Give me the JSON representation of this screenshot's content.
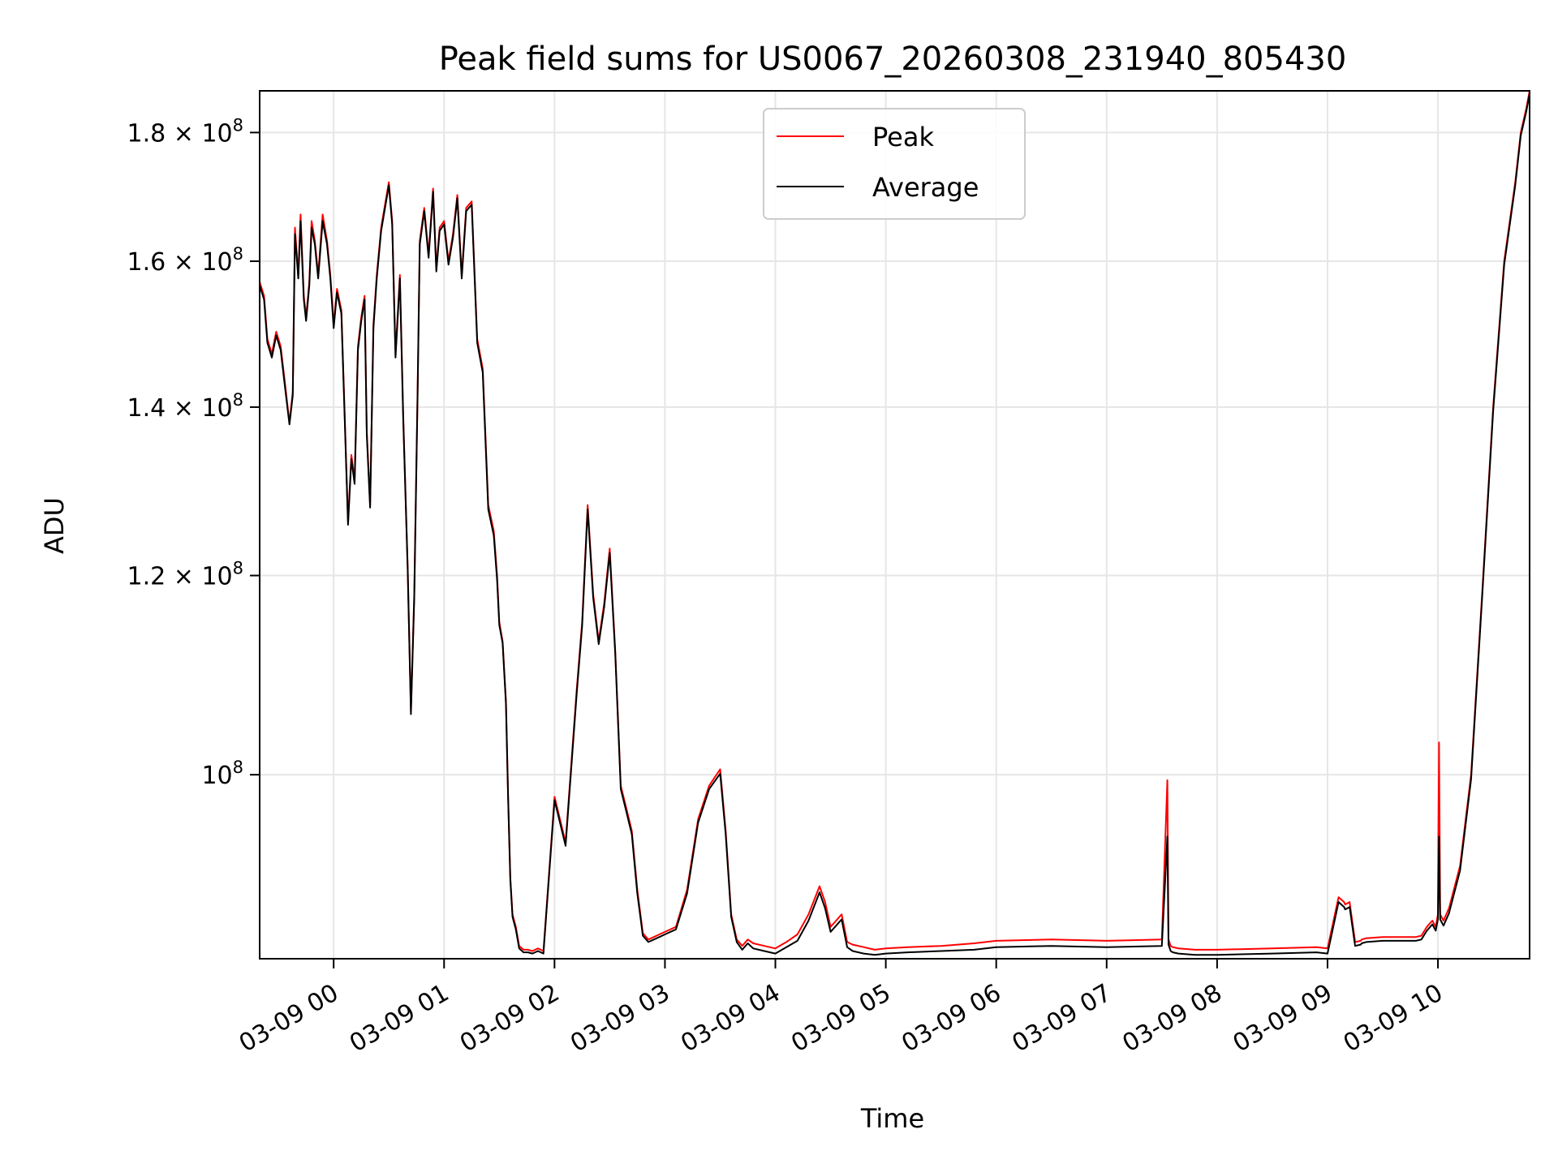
{
  "chart_data": {
    "type": "line",
    "title": "Peak field sums for US0067_20260308_231940_805430",
    "xlabel": "Time",
    "ylabel": "ADU",
    "y_scale": "log",
    "ylim": [
      84500000,
      187000000
    ],
    "xlim_hours": [
      -0.67,
      10.83
    ],
    "grid": true,
    "legend_position": "top-center",
    "x_ticks": [
      {
        "hour": 0,
        "label": "03-09 00"
      },
      {
        "hour": 1,
        "label": "03-09 01"
      },
      {
        "hour": 2,
        "label": "03-09 02"
      },
      {
        "hour": 3,
        "label": "03-09 03"
      },
      {
        "hour": 4,
        "label": "03-09 04"
      },
      {
        "hour": 5,
        "label": "03-09 05"
      },
      {
        "hour": 6,
        "label": "03-09 06"
      },
      {
        "hour": 7,
        "label": "03-09 07"
      },
      {
        "hour": 8,
        "label": "03-09 08"
      },
      {
        "hour": 9,
        "label": "03-09 09"
      },
      {
        "hour": 10,
        "label": "03-09 10"
      }
    ],
    "y_ticks": [
      {
        "value": 100000000,
        "mantissa": "10",
        "exponent": "8",
        "times": ""
      },
      {
        "value": 120000000,
        "mantissa": "1.2",
        "exponent": "8",
        "times": "× 10"
      },
      {
        "value": 140000000,
        "mantissa": "1.4",
        "exponent": "8",
        "times": "× 10"
      },
      {
        "value": 160000000,
        "mantissa": "1.6",
        "exponent": "8",
        "times": "× 10"
      },
      {
        "value": 180000000,
        "mantissa": "1.8",
        "exponent": "8",
        "times": "× 10"
      }
    ],
    "series": [
      {
        "name": "Peak",
        "color": "#ff0000",
        "x_hours": [
          -0.67,
          -0.63,
          -0.6,
          -0.56,
          -0.52,
          -0.48,
          -0.44,
          -0.4,
          -0.37,
          -0.35,
          -0.32,
          -0.3,
          -0.27,
          -0.25,
          -0.22,
          -0.2,
          -0.17,
          -0.14,
          -0.1,
          -0.06,
          -0.03,
          0.0,
          0.03,
          0.07,
          0.1,
          0.13,
          0.16,
          0.19,
          0.22,
          0.25,
          0.28,
          0.3,
          0.33,
          0.36,
          0.39,
          0.43,
          0.46,
          0.5,
          0.53,
          0.56,
          0.6,
          0.63,
          0.67,
          0.7,
          0.73,
          0.76,
          0.78,
          0.82,
          0.86,
          0.9,
          0.93,
          0.96,
          1.0,
          1.04,
          1.08,
          1.12,
          1.16,
          1.2,
          1.25,
          1.3,
          1.35,
          1.4,
          1.45,
          1.48,
          1.5,
          1.53,
          1.56,
          1.58,
          1.6,
          1.62,
          1.65,
          1.68,
          1.72,
          1.76,
          1.8,
          1.85,
          1.9,
          2.0,
          2.1,
          2.2,
          2.25,
          2.3,
          2.35,
          2.4,
          2.45,
          2.5,
          2.55,
          2.6,
          2.65,
          2.7,
          2.75,
          2.8,
          2.85,
          2.9,
          2.95,
          3.0,
          3.1,
          3.2,
          3.3,
          3.4,
          3.5,
          3.55,
          3.6,
          3.65,
          3.7,
          3.75,
          3.8,
          3.9,
          4.0,
          4.1,
          4.2,
          4.3,
          4.4,
          4.45,
          4.5,
          4.55,
          4.6,
          4.65,
          4.7,
          4.8,
          4.9,
          5.0,
          5.2,
          5.5,
          5.8,
          6.0,
          6.5,
          7.0,
          7.5,
          7.55,
          7.56,
          7.58,
          7.6,
          7.65,
          7.8,
          8.0,
          8.5,
          8.9,
          9.0,
          9.1,
          9.15,
          9.16,
          9.2,
          9.25,
          9.3,
          9.31,
          9.35,
          9.5,
          9.8,
          9.85,
          9.9,
          9.95,
          9.98,
          10.0,
          10.01,
          10.02,
          10.05,
          10.1,
          10.2,
          10.3,
          10.4,
          10.5,
          10.6,
          10.7,
          10.75,
          10.8,
          10.83
        ],
        "y": [
          157,
          155,
          149,
          147,
          150,
          148,
          143,
          138,
          142,
          165,
          158,
          167,
          155,
          152,
          157,
          166,
          163,
          158,
          167,
          163,
          158,
          151,
          156,
          153,
          139,
          126,
          134,
          131,
          148,
          152,
          155,
          137,
          128,
          151,
          158,
          165,
          168,
          172,
          166,
          147,
          158,
          139,
          121,
          106,
          118,
          142,
          163,
          168,
          161,
          171,
          159,
          165,
          166,
          160,
          164,
          170,
          158,
          168,
          169,
          149,
          145,
          128,
          125,
          120,
          115,
          113,
          107,
          98,
          91,
          88,
          87,
          85.5,
          85.2,
          85.2,
          85.1,
          85.3,
          85.1,
          98,
          94,
          108,
          115,
          128,
          118,
          113,
          117,
          123,
          112,
          99,
          97,
          95,
          90,
          86.5,
          86,
          86.2,
          86.4,
          86.6,
          87,
          90,
          96,
          99,
          100.5,
          95,
          88,
          86,
          85.5,
          86,
          85.7,
          85.5,
          85.3,
          85.8,
          86.4,
          88,
          90.3,
          89,
          87,
          87.5,
          88,
          85.8,
          85.6,
          85.4,
          85.2,
          85.3,
          85.4,
          85.5,
          85.7,
          85.9,
          86.0,
          85.9,
          86.0,
          99.5,
          86.0,
          85.5,
          85.4,
          85.3,
          85.2,
          85.2,
          85.3,
          85.4,
          85.3,
          89.4,
          89,
          88.8,
          89,
          85.8,
          85.9,
          86.0,
          86.1,
          86.2,
          86.2,
          86.3,
          87,
          87.5,
          87,
          88,
          103,
          88,
          87.5,
          88.5,
          92,
          100,
          118,
          140,
          160,
          172,
          180,
          184,
          187
        ]
      },
      {
        "name": "Average",
        "color": "#000000",
        "x_hours": [
          -0.67,
          -0.63,
          -0.6,
          -0.56,
          -0.52,
          -0.48,
          -0.44,
          -0.4,
          -0.37,
          -0.35,
          -0.32,
          -0.3,
          -0.27,
          -0.25,
          -0.22,
          -0.2,
          -0.17,
          -0.14,
          -0.1,
          -0.06,
          -0.03,
          0.0,
          0.03,
          0.07,
          0.1,
          0.13,
          0.16,
          0.19,
          0.22,
          0.25,
          0.28,
          0.3,
          0.33,
          0.36,
          0.39,
          0.43,
          0.46,
          0.5,
          0.53,
          0.56,
          0.6,
          0.63,
          0.67,
          0.7,
          0.73,
          0.76,
          0.78,
          0.82,
          0.86,
          0.9,
          0.93,
          0.96,
          1.0,
          1.04,
          1.08,
          1.12,
          1.16,
          1.2,
          1.25,
          1.3,
          1.35,
          1.4,
          1.45,
          1.48,
          1.5,
          1.53,
          1.56,
          1.58,
          1.6,
          1.62,
          1.65,
          1.68,
          1.72,
          1.76,
          1.8,
          1.85,
          1.9,
          2.0,
          2.1,
          2.2,
          2.25,
          2.3,
          2.35,
          2.4,
          2.45,
          2.5,
          2.55,
          2.6,
          2.65,
          2.7,
          2.75,
          2.8,
          2.85,
          2.9,
          2.95,
          3.0,
          3.1,
          3.2,
          3.3,
          3.4,
          3.5,
          3.55,
          3.6,
          3.65,
          3.7,
          3.75,
          3.8,
          3.9,
          4.0,
          4.1,
          4.2,
          4.3,
          4.4,
          4.45,
          4.5,
          4.55,
          4.6,
          4.65,
          4.7,
          4.8,
          4.9,
          5.0,
          5.2,
          5.5,
          5.8,
          6.0,
          6.5,
          7.0,
          7.5,
          7.55,
          7.56,
          7.58,
          7.6,
          7.65,
          7.8,
          8.0,
          8.5,
          8.9,
          9.0,
          9.1,
          9.15,
          9.16,
          9.2,
          9.25,
          9.3,
          9.31,
          9.35,
          9.5,
          9.8,
          9.85,
          9.9,
          9.95,
          9.98,
          10.0,
          10.01,
          10.02,
          10.05,
          10.1,
          10.2,
          10.3,
          10.4,
          10.5,
          10.6,
          10.7,
          10.75,
          10.8,
          10.83
        ],
        "y": [
          156.5,
          154.5,
          148.5,
          146.5,
          149.5,
          147.5,
          142.5,
          137.8,
          141.5,
          164,
          157.5,
          166,
          154.5,
          151.5,
          156.5,
          165,
          162.5,
          157.5,
          166,
          162.5,
          157.5,
          150.5,
          155.5,
          152.5,
          138.5,
          125.7,
          133.5,
          130.5,
          147.5,
          151.5,
          154.5,
          136.5,
          127.7,
          150.5,
          157.5,
          164.5,
          167.5,
          171.5,
          165.5,
          146.5,
          157.5,
          138.5,
          120.7,
          105.7,
          117.5,
          141.5,
          162.5,
          167.5,
          160.5,
          170.5,
          158.5,
          164.5,
          165.5,
          159.5,
          163.5,
          169.5,
          157.5,
          167.5,
          168.5,
          148.5,
          144.5,
          127.5,
          124.5,
          119.5,
          114.7,
          112.8,
          106.7,
          97.8,
          90.8,
          87.8,
          86.8,
          85.3,
          85.0,
          85.0,
          84.9,
          85.1,
          84.9,
          97.7,
          93.7,
          107.6,
          114.6,
          127.5,
          117.6,
          112.7,
          116.6,
          122.5,
          111.7,
          98.7,
          96.7,
          94.7,
          89.7,
          86.3,
          85.8,
          86.0,
          86.2,
          86.4,
          86.8,
          89.7,
          95.7,
          98.7,
          100.1,
          94.7,
          87.8,
          85.8,
          85.2,
          85.7,
          85.3,
          85.1,
          84.9,
          85.4,
          85.9,
          87.5,
          89.8,
          88.5,
          86.6,
          87.1,
          87.6,
          85.4,
          85.1,
          84.9,
          84.8,
          84.9,
          85.0,
          85.1,
          85.2,
          85.4,
          85.5,
          85.4,
          85.5,
          94.5,
          85.6,
          85.1,
          85.0,
          84.9,
          84.8,
          84.8,
          84.9,
          85.0,
          84.9,
          89.0,
          88.6,
          88.4,
          88.6,
          85.5,
          85.6,
          85.7,
          85.8,
          85.9,
          85.9,
          86.0,
          86.7,
          87.2,
          86.7,
          87.6,
          94.5,
          87.6,
          87.1,
          88.1,
          91.6,
          99.6,
          117.6,
          139.5,
          159.5,
          171.5,
          179.5,
          183.5,
          186.5
        ]
      }
    ],
    "y_unit_multiplier": 1000000
  }
}
